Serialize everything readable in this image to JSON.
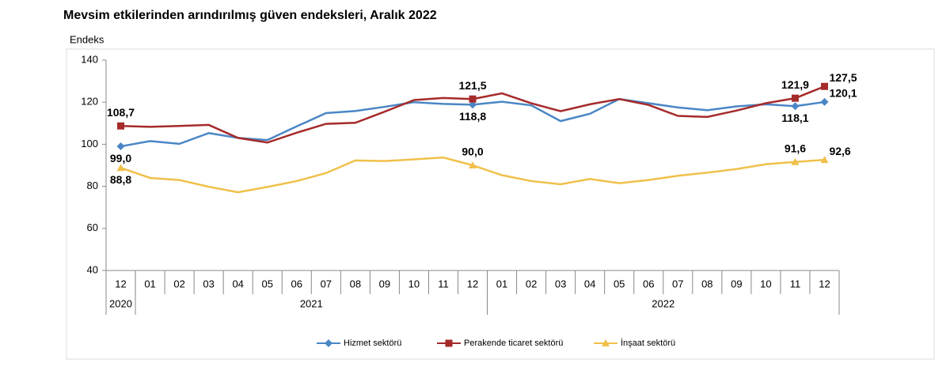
{
  "chart_data": {
    "type": "line",
    "title": "Mevsim etkilerinden arındırılmış güven endeksleri, Aralık 2022",
    "y_axis_label": "Endeks",
    "categories": [
      "12",
      "01",
      "02",
      "03",
      "04",
      "05",
      "06",
      "07",
      "08",
      "09",
      "10",
      "11",
      "12",
      "01",
      "02",
      "03",
      "04",
      "05",
      "06",
      "07",
      "08",
      "09",
      "10",
      "11",
      "12"
    ],
    "year_labels": [
      "2020",
      "2021",
      "2022"
    ],
    "ylim": [
      40,
      140
    ],
    "yticks": [
      40,
      60,
      80,
      100,
      120,
      140
    ],
    "legend": "bottom",
    "series": [
      {
        "name": "Hizmet sektörü",
        "color": "#4a86c5",
        "marker": "diamond",
        "values": [
          99.0,
          101.5,
          100.2,
          105.3,
          103.0,
          102.0,
          108.5,
          114.8,
          115.8,
          117.8,
          120.0,
          119.2,
          118.8,
          120.2,
          118.5,
          111.0,
          114.5,
          121.5,
          119.5,
          117.5,
          116.2,
          118.0,
          119.0,
          118.1,
          120.1
        ],
        "value_labels": [
          "99,0",
          null,
          null,
          null,
          null,
          null,
          null,
          null,
          null,
          null,
          null,
          null,
          "118,8",
          null,
          null,
          null,
          null,
          null,
          null,
          null,
          null,
          null,
          null,
          "118,1",
          "120,1"
        ]
      },
      {
        "name": "Perakende ticaret sektörü",
        "color": "#a52a2a",
        "marker": "square",
        "values": [
          108.7,
          108.3,
          108.7,
          109.2,
          103.0,
          100.8,
          105.5,
          109.7,
          110.2,
          115.5,
          121.0,
          122.0,
          121.5,
          124.2,
          119.5,
          115.7,
          119.0,
          121.5,
          118.7,
          113.5,
          113.0,
          116.0,
          119.5,
          121.9,
          127.5
        ],
        "value_labels": [
          "108,7",
          null,
          null,
          null,
          null,
          null,
          null,
          null,
          null,
          null,
          null,
          null,
          "121,5",
          null,
          null,
          null,
          null,
          null,
          null,
          null,
          null,
          null,
          null,
          "121,9",
          "127,5"
        ]
      },
      {
        "name": "İnşaat sektörü",
        "color": "#f0c04a",
        "marker": "triangle",
        "values": [
          88.8,
          84.0,
          83.0,
          79.8,
          77.2,
          79.7,
          82.5,
          86.3,
          92.3,
          92.0,
          92.8,
          93.7,
          90.0,
          85.3,
          82.5,
          81.0,
          83.5,
          81.5,
          83.0,
          85.0,
          86.5,
          88.2,
          90.5,
          91.6,
          92.6
        ],
        "value_labels": [
          "88,8",
          null,
          null,
          null,
          null,
          null,
          null,
          null,
          null,
          null,
          null,
          null,
          "90,0",
          null,
          null,
          null,
          null,
          null,
          null,
          null,
          null,
          null,
          null,
          "91,6",
          "92,6"
        ]
      }
    ]
  }
}
